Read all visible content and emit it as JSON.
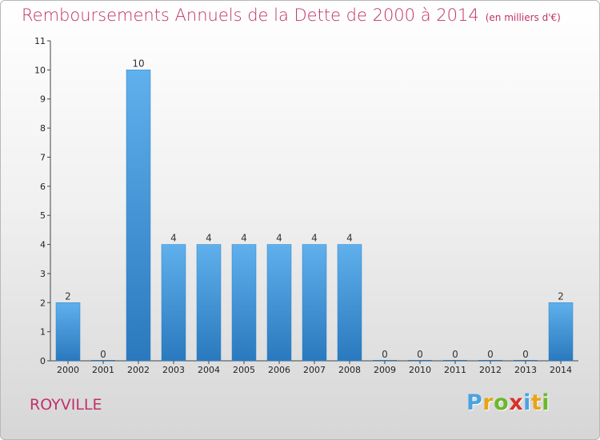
{
  "title": "Remboursements Annuels de la Dette de 2000 à 2014",
  "unit": "(en milliers d'€)",
  "commune": "ROYVILLE",
  "logo": {
    "letters": [
      "P",
      "r",
      "o",
      "x",
      "i",
      "t",
      "i"
    ],
    "colors": [
      "#4aa3df",
      "#e8a317",
      "#6bb82f",
      "#d8312a",
      "#4aa3df",
      "#e8a317",
      "#6bb82f"
    ]
  },
  "colors": {
    "title": "#c0316a",
    "bar_light": "#5fb0ec",
    "bar_dark": "#2a79be"
  },
  "chart_data": {
    "type": "bar",
    "categories": [
      "2000",
      "2001",
      "2002",
      "2003",
      "2004",
      "2005",
      "2006",
      "2007",
      "2008",
      "2009",
      "2010",
      "2011",
      "2012",
      "2013",
      "2014"
    ],
    "values": [
      2,
      0,
      10,
      4,
      4,
      4,
      4,
      4,
      4,
      0,
      0,
      0,
      0,
      0,
      2
    ],
    "yticks": [
      0,
      1,
      2,
      3,
      4,
      5,
      6,
      7,
      8,
      9,
      10,
      11
    ],
    "ylim": [
      0,
      11
    ],
    "title": "Remboursements Annuels de la Dette de 2000 à 2014",
    "xlabel": "",
    "ylabel": "",
    "grid": false
  }
}
